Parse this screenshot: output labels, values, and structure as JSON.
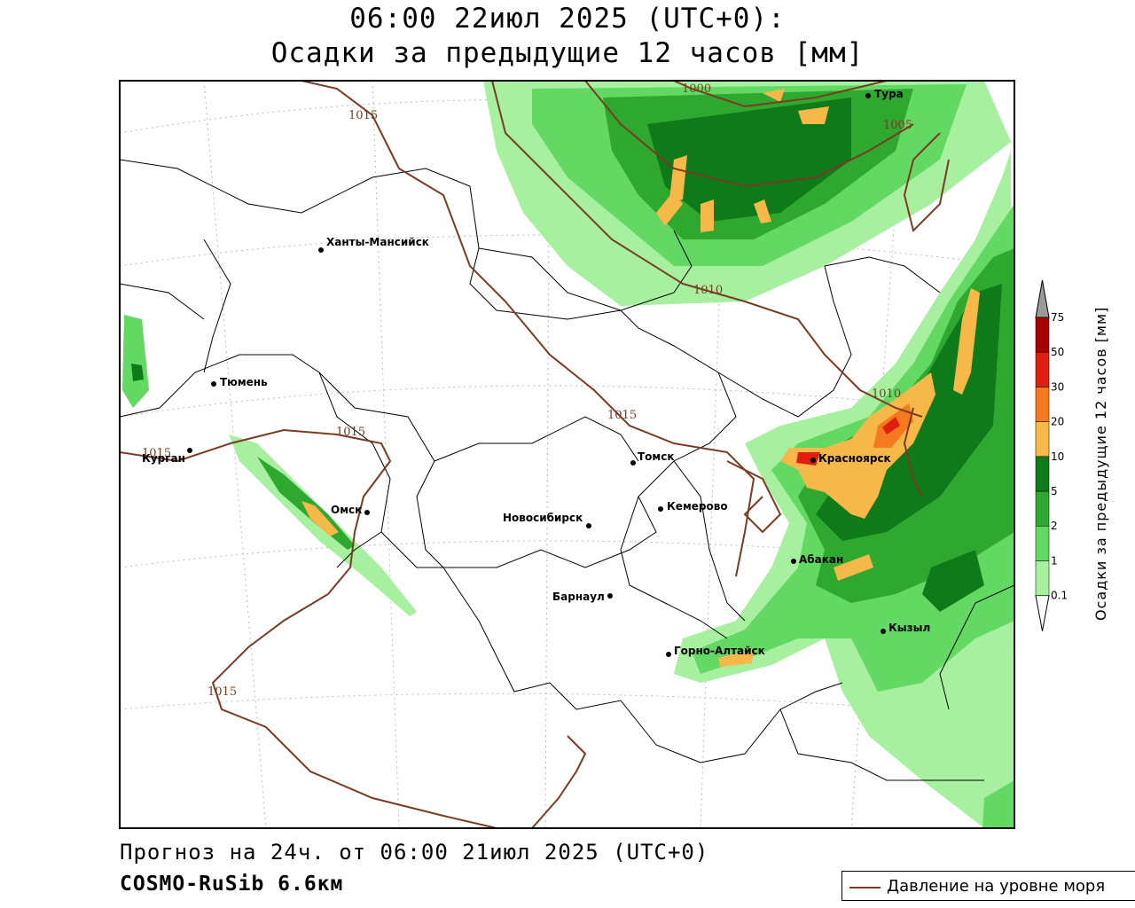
{
  "header": {
    "line1": "06:00 22июл 2025 (UTC+0):",
    "line2": "Осадки за предыдущие 12 часов [мм]"
  },
  "footer": {
    "forecast": "Прогноз на 24ч. от 06:00 21июл 2025 (UTC+0)",
    "model": "COSMO-RuSib 6.6км"
  },
  "legend": {
    "line_label": "Давление на уровне моря",
    "line_color": "#7a3b23"
  },
  "colorbar": {
    "title": "Осадки за предыдущие 12 часов [мм]",
    "ticks": [
      "0.1",
      "1",
      "2",
      "5",
      "10",
      "20",
      "30",
      "50",
      "75"
    ],
    "colors": [
      "#a6f0a0",
      "#63d863",
      "#2ea82e",
      "#0f7a1a",
      "#f7b84a",
      "#f57a1f",
      "#e01e10",
      "#a80000",
      "#9a9a9a"
    ]
  },
  "cities": [
    "Тура",
    "Ханты-Мансийск",
    "Тюмень",
    "Курган",
    "Омск",
    "Томск",
    "Кемерово",
    "Новосибирск",
    "Красноярск",
    "Абакан",
    "Барнаул",
    "Кызыл",
    "Горно-Алтайск"
  ],
  "isobars": [
    "1000",
    "1005",
    "1010",
    "1015",
    "1015",
    "1015",
    "1015",
    "1015",
    "1010"
  ]
}
